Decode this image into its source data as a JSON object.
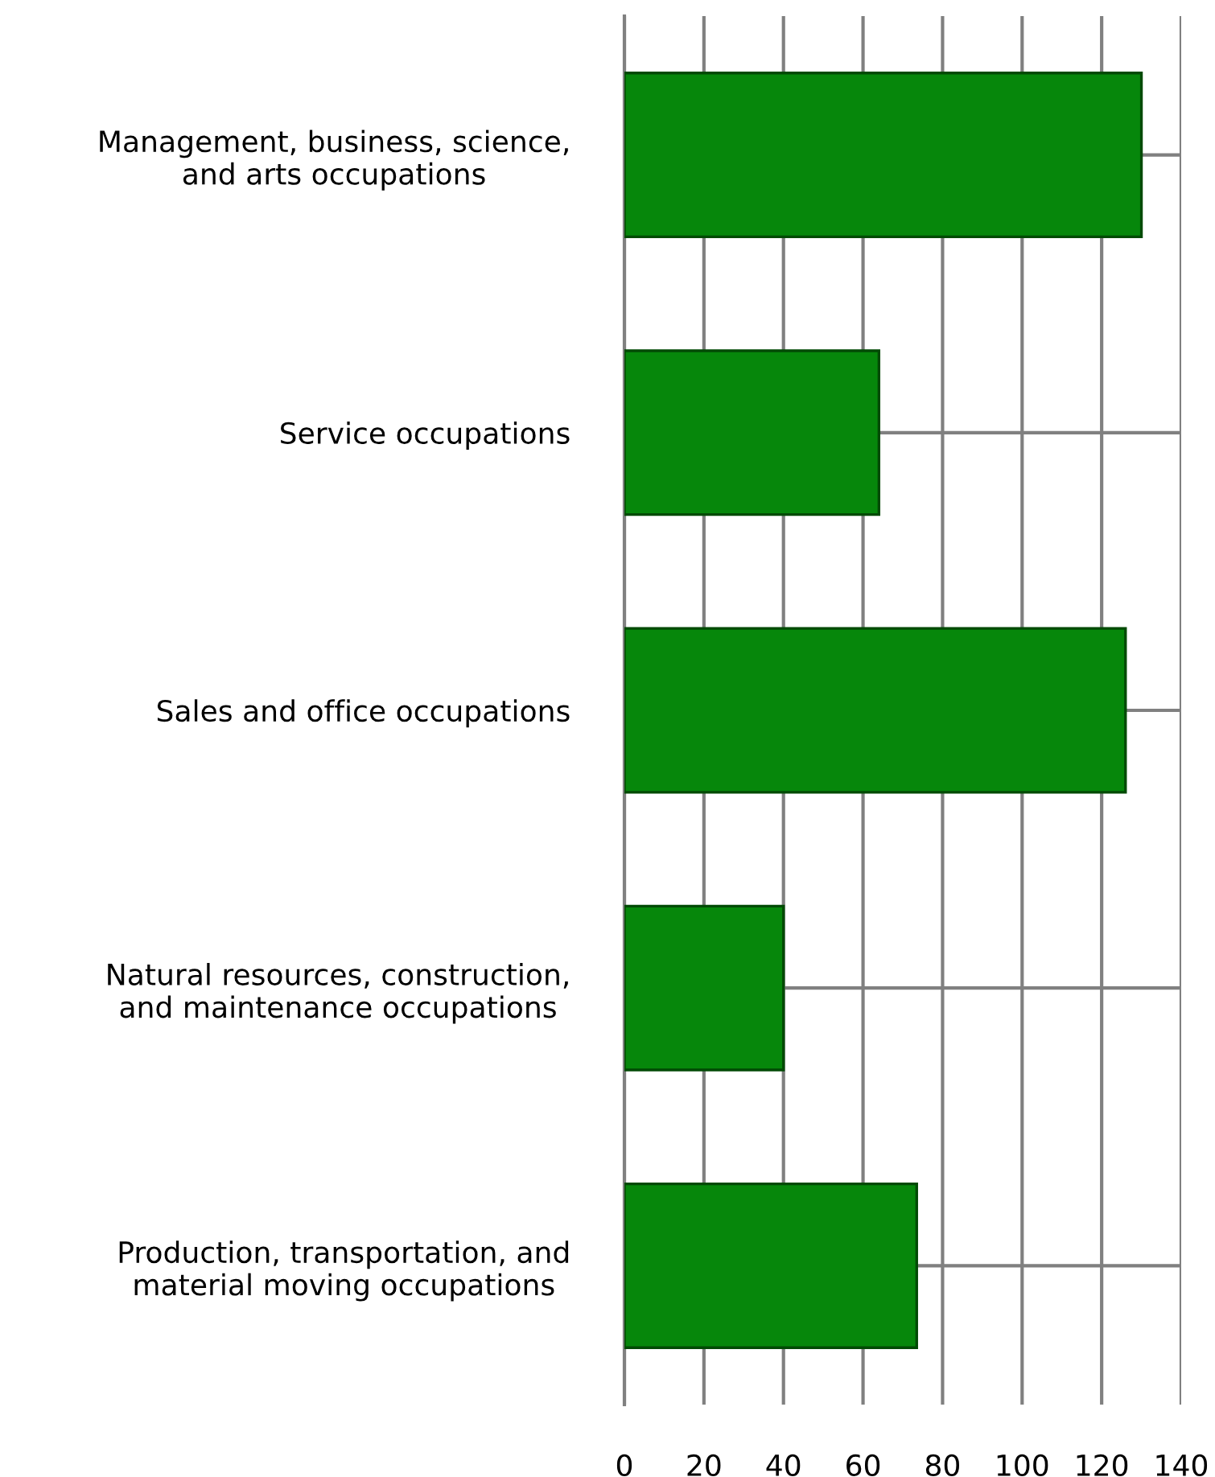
{
  "chart_data": {
    "type": "bar",
    "orientation": "horizontal",
    "categories": [
      "Management, business, science,\nand arts occupations",
      "Service occupations",
      "Sales and office occupations",
      "Natural resources, construction,\nand maintenance occupations",
      "Production, transportation, and\nmaterial moving occupations"
    ],
    "values": [
      130,
      64,
      126,
      40,
      73.5
    ],
    "color": "#06870b",
    "xlim": [
      0,
      140
    ],
    "xticks": [
      0,
      20,
      40,
      60,
      80,
      100,
      120,
      140
    ],
    "grid": true
  }
}
